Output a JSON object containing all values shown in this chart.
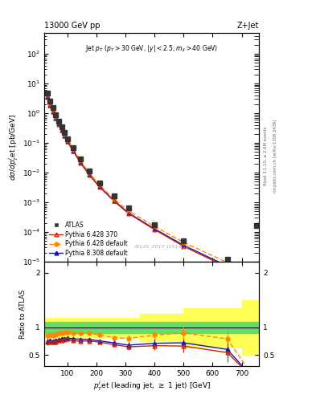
{
  "title_left": "13000 GeV pp",
  "title_right": "Z+Jet",
  "annotation": "Jet $p_T$ ($p_T > 30$ GeV, $|y| < 2.5$, $m_{ll} > 40$ GeV)",
  "watermark": "ATLAS_2017_I1514251",
  "right_label1": "Rivet 3.1.10, ≥ 2.6M events",
  "right_label2": "mcplots.cern.ch [arXiv:1306.3436]",
  "atlas_x": [
    30,
    40,
    50,
    60,
    70,
    80,
    90,
    100,
    120,
    145,
    175,
    210,
    260,
    310,
    400,
    500,
    650,
    750
  ],
  "atlas_y": [
    4.8,
    2.5,
    1.5,
    0.9,
    0.55,
    0.35,
    0.22,
    0.14,
    0.068,
    0.028,
    0.011,
    0.0045,
    0.0016,
    0.00065,
    0.00018,
    5e-05,
    1.2e-05,
    0.00016
  ],
  "atlas_yerr": [
    0.3,
    0.15,
    0.09,
    0.06,
    0.035,
    0.022,
    0.014,
    0.009,
    0.004,
    0.002,
    0.0008,
    0.00035,
    0.0001,
    6e-05,
    2e-05,
    6e-06,
    2.5e-06,
    2e-05
  ],
  "py6_370_x": [
    30,
    40,
    50,
    60,
    70,
    80,
    90,
    100,
    120,
    145,
    175,
    210,
    260,
    310,
    400,
    500,
    650,
    750
  ],
  "py6_370_y": [
    3.5,
    1.85,
    1.1,
    0.67,
    0.42,
    0.27,
    0.172,
    0.11,
    0.052,
    0.021,
    0.0083,
    0.0033,
    0.0011,
    0.00042,
    0.00012,
    3.3e-05,
    6.5e-06,
    2.5e-06
  ],
  "py6_def_x": [
    30,
    40,
    50,
    60,
    70,
    80,
    90,
    100,
    120,
    145,
    175,
    210,
    260,
    310,
    400,
    500,
    650,
    750
  ],
  "py6_def_y": [
    4.1,
    2.15,
    1.28,
    0.78,
    0.49,
    0.315,
    0.2,
    0.128,
    0.061,
    0.025,
    0.0098,
    0.0039,
    0.0013,
    0.00052,
    0.000155,
    4.5e-05,
    9.5e-06,
    3.8e-06
  ],
  "py8_def_x": [
    30,
    40,
    50,
    60,
    70,
    80,
    90,
    100,
    120,
    145,
    175,
    210,
    260,
    310,
    400,
    500,
    650,
    750
  ],
  "py8_def_y": [
    3.6,
    1.9,
    1.13,
    0.69,
    0.43,
    0.277,
    0.176,
    0.113,
    0.054,
    0.022,
    0.0086,
    0.0034,
    0.00115,
    0.00044,
    0.000128,
    3.6e-05,
    7.2e-06,
    2.8e-06
  ],
  "ratio_x": [
    30,
    40,
    50,
    60,
    70,
    80,
    90,
    100,
    120,
    145,
    175,
    210,
    260,
    310,
    400,
    500,
    650,
    750
  ],
  "ratio_py6_370_y": [
    0.73,
    0.74,
    0.73,
    0.74,
    0.76,
    0.77,
    0.78,
    0.79,
    0.76,
    0.75,
    0.755,
    0.733,
    0.688,
    0.646,
    0.667,
    0.66,
    0.542,
    0.016
  ],
  "ratio_py6_def_y": [
    0.85,
    0.86,
    0.853,
    0.867,
    0.891,
    0.9,
    0.909,
    0.914,
    0.897,
    0.893,
    0.891,
    0.867,
    0.813,
    0.8,
    0.861,
    0.9,
    0.792,
    0.024
  ],
  "ratio_py8_def_y": [
    0.75,
    0.76,
    0.753,
    0.767,
    0.782,
    0.791,
    0.8,
    0.807,
    0.794,
    0.786,
    0.782,
    0.756,
    0.719,
    0.677,
    0.711,
    0.72,
    0.6,
    0.018
  ],
  "ratio_py6_370_yerr": [
    0.05,
    0.04,
    0.03,
    0.03,
    0.025,
    0.025,
    0.02,
    0.02,
    0.02,
    0.02,
    0.025,
    0.03,
    0.04,
    0.06,
    0.08,
    0.12,
    0.18,
    0.05
  ],
  "ratio_py6_def_yerr": [
    0.05,
    0.04,
    0.03,
    0.03,
    0.025,
    0.025,
    0.02,
    0.02,
    0.02,
    0.02,
    0.025,
    0.03,
    0.04,
    0.06,
    0.08,
    0.12,
    0.18,
    0.05
  ],
  "ratio_py8_def_yerr": [
    0.05,
    0.04,
    0.03,
    0.03,
    0.025,
    0.025,
    0.02,
    0.02,
    0.02,
    0.02,
    0.025,
    0.03,
    0.04,
    0.06,
    0.08,
    0.12,
    0.18,
    0.05
  ],
  "band_x_edges": [
    20,
    75,
    150,
    250,
    350,
    500,
    700,
    760
  ],
  "band_green_lo": [
    0.9,
    0.9,
    0.9,
    0.9,
    0.9,
    0.9,
    0.9,
    0.9
  ],
  "band_green_hi": [
    1.1,
    1.1,
    1.1,
    1.1,
    1.1,
    1.1,
    1.1,
    1.1
  ],
  "band_yellow_lo": [
    0.82,
    0.82,
    0.82,
    0.82,
    0.75,
    0.65,
    0.5,
    0.5
  ],
  "band_yellow_hi": [
    1.18,
    1.18,
    1.18,
    1.18,
    1.25,
    1.35,
    1.5,
    1.5
  ],
  "atlas_color": "#333333",
  "py6_370_color": "#cc2200",
  "py6_def_color": "#ff8800",
  "py8_def_color": "#1111cc",
  "xlim": [
    20,
    760
  ],
  "ylim_main": [
    1e-05,
    500.0
  ],
  "ylim_ratio": [
    0.3,
    2.2
  ],
  "ratio_yticks": [
    0.5,
    1.0,
    2.0
  ],
  "ratio_yticklabels": [
    "0.5",
    "1",
    "2"
  ]
}
